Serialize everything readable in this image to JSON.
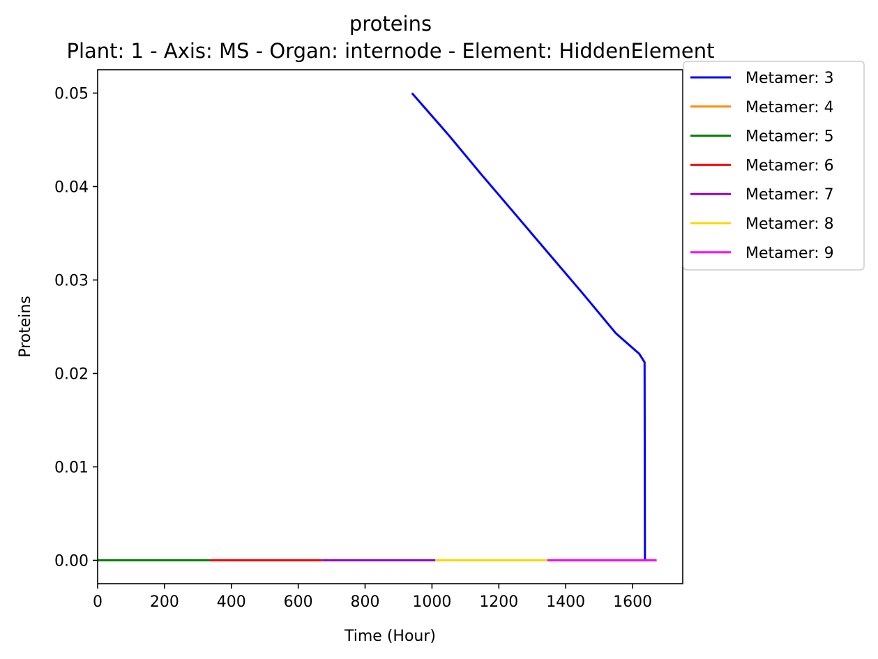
{
  "chart_data": {
    "type": "line",
    "title": "proteins",
    "subtitle": "Plant: 1 - Axis: MS - Organ: internode - Element: HiddenElement",
    "xlabel": "Time (Hour)",
    "ylabel": "Proteins",
    "xlim": [
      0,
      1750
    ],
    "ylim": [
      -0.0025,
      0.0525
    ],
    "xticks": [
      0,
      200,
      400,
      600,
      800,
      1000,
      1200,
      1400,
      1600
    ],
    "xtick_labels": [
      "0",
      "200",
      "400",
      "600",
      "800",
      "1000",
      "1200",
      "1400",
      "1600"
    ],
    "yticks": [
      0.0,
      0.01,
      0.02,
      0.03,
      0.04,
      0.05
    ],
    "ytick_labels": [
      "0.00",
      "0.01",
      "0.02",
      "0.03",
      "0.04",
      "0.05"
    ],
    "grid": false,
    "legend_position": "outside top-right",
    "series": [
      {
        "name": "Metamer: 3",
        "color": "#0000ff",
        "x": [
          940,
          1050,
          1150,
          1250,
          1350,
          1450,
          1550,
          1620,
          1636,
          1637,
          1640
        ],
        "y": [
          0.05,
          0.0455,
          0.0412,
          0.037,
          0.0328,
          0.0286,
          0.0243,
          0.0221,
          0.0212,
          0.0,
          0.0
        ]
      },
      {
        "name": "Metamer: 4",
        "color": "#ff8c00",
        "x": [],
        "y": []
      },
      {
        "name": "Metamer: 5",
        "color": "#008000",
        "x": [
          0,
          336
        ],
        "y": [
          0.0,
          0.0
        ]
      },
      {
        "name": "Metamer: 6",
        "color": "#ff0000",
        "x": [
          336,
          672
        ],
        "y": [
          0.0,
          0.0
        ]
      },
      {
        "name": "Metamer: 7",
        "color": "#9400d3",
        "x": [
          672,
          1010
        ],
        "y": [
          0.0,
          0.0
        ]
      },
      {
        "name": "Metamer: 8",
        "color": "#ffd700",
        "x": [
          1010,
          1345
        ],
        "y": [
          0.0,
          0.0
        ]
      },
      {
        "name": "Metamer: 9",
        "color": "#ff00ff",
        "x": [
          1345,
          1672
        ],
        "y": [
          0.0,
          0.0
        ]
      }
    ]
  }
}
